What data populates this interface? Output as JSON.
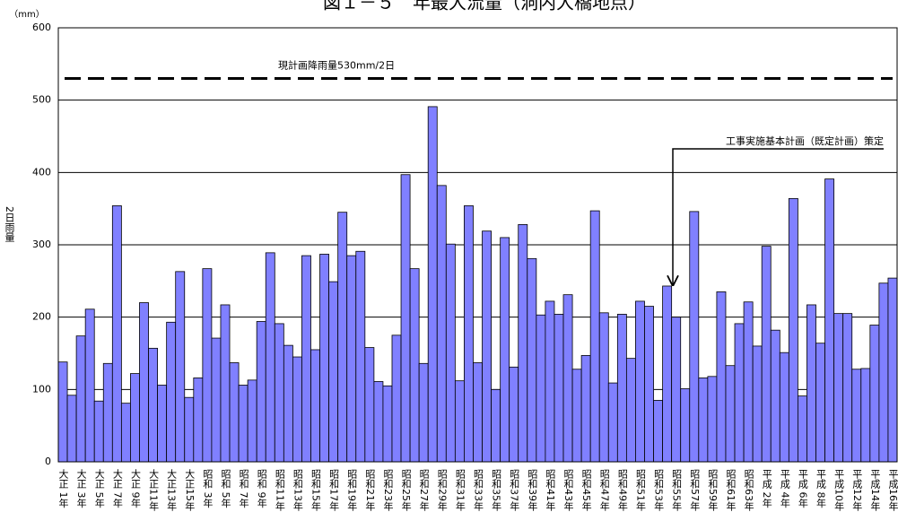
{
  "chart_data": {
    "type": "bar",
    "title": "図１－５　年最大流量（洞内大橋地点）",
    "y_unit": "（mm）",
    "y_label": "2日雨量",
    "color": "#8080ff",
    "grid": true,
    "ylim": [
      0,
      600
    ],
    "yticks": [
      0,
      100,
      200,
      300,
      400,
      500,
      600
    ],
    "reference_line": {
      "value": 530,
      "label": "現計画降雨量530mm/2日"
    },
    "annotation": "工事実施基本計画（既定計画）策定",
    "categories": [
      "大正 1年",
      null,
      "大正 3年",
      null,
      "大正 5年",
      null,
      "大正 7年",
      null,
      "大正 9年",
      null,
      "大正11年",
      null,
      "大正13年",
      null,
      "大正15年",
      null,
      "昭和 3年",
      null,
      "昭和 5年",
      null,
      "昭和 7年",
      null,
      "昭和 9年",
      null,
      "昭和11年",
      null,
      "昭和13年",
      null,
      "昭和15年",
      null,
      "昭和17年",
      null,
      "昭和19年",
      null,
      "昭和21年",
      null,
      "昭和23年",
      null,
      "昭和25年",
      null,
      "昭和27年",
      null,
      "昭和29年",
      null,
      "昭和31年",
      null,
      "昭和33年",
      null,
      "昭和35年",
      null,
      "昭和37年",
      null,
      "昭和39年",
      null,
      "昭和41年",
      null,
      "昭和43年",
      null,
      "昭和45年",
      null,
      "昭和47年",
      null,
      "昭和49年",
      null,
      "昭和51年",
      null,
      "昭和53年",
      null,
      "昭和55年",
      null,
      "昭和57年",
      null,
      "昭和59年",
      null,
      "昭和61年",
      null,
      "昭和63年",
      null,
      "平成 2年",
      null,
      "平成 4年",
      null,
      "平成 6年",
      null,
      "平成 8年",
      null,
      "平成10年",
      null,
      "平成12年",
      null,
      "平成14年",
      null,
      "平成16年"
    ],
    "values": [
      138,
      92,
      174,
      211,
      84,
      136,
      354,
      81,
      122,
      220,
      157,
      106,
      193,
      263,
      89,
      116,
      267,
      171,
      217,
      137,
      106,
      113,
      194,
      289,
      191,
      161,
      145,
      285,
      155,
      287,
      249,
      345,
      285,
      291,
      158,
      111,
      105,
      175,
      397,
      267,
      136,
      491,
      382,
      301,
      112,
      354,
      137,
      319,
      100,
      310,
      131,
      328,
      281,
      203,
      222,
      204,
      231,
      128,
      147,
      347,
      206,
      109,
      204,
      143,
      222,
      215,
      85,
      243,
      200,
      101,
      346,
      116,
      118,
      235,
      133,
      191,
      221,
      160,
      298,
      182,
      151,
      364,
      91,
      217,
      164,
      391,
      205,
      205,
      128,
      129,
      189,
      247,
      254
    ]
  }
}
